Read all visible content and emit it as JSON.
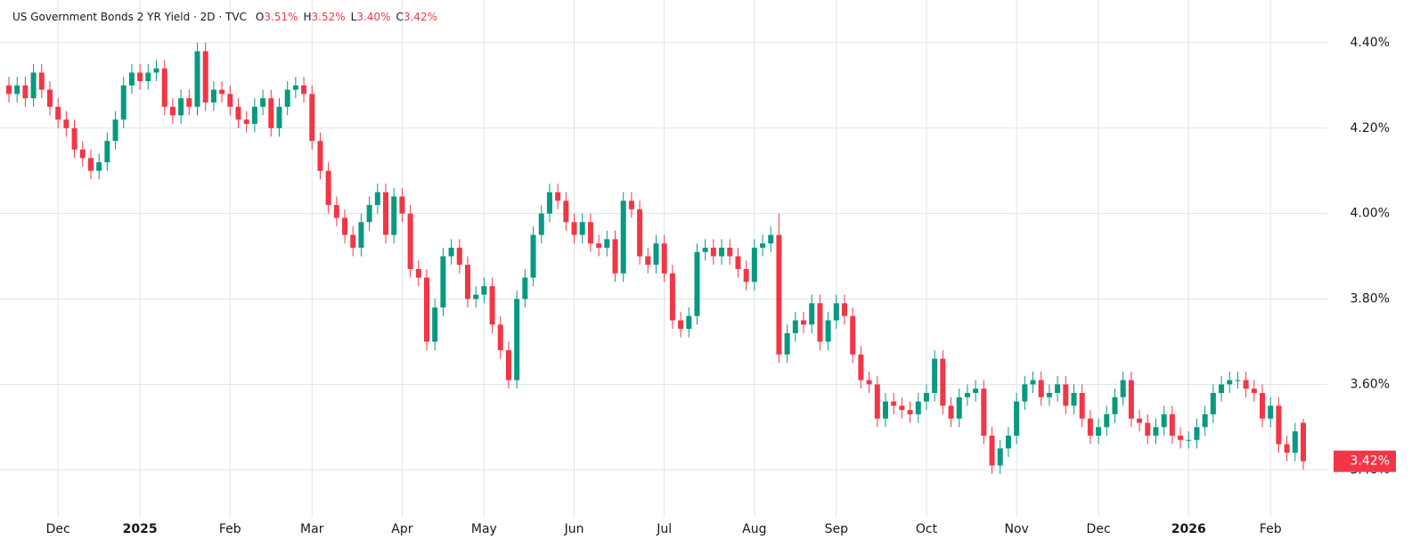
{
  "chart_data": {
    "type": "candlestick",
    "title": "US Government Bonds 2 YR Yield · 2D · TVC",
    "ohlc_legend": [
      {
        "key": "O",
        "label": "3.51%"
      },
      {
        "key": "H",
        "label": "3.52%"
      },
      {
        "key": "L",
        "label": "3.40%"
      },
      {
        "key": "C",
        "label": "3.42%"
      }
    ],
    "last_price": {
      "value": 3.42,
      "label": "3.42%"
    },
    "up_color": "#089981",
    "down_color": "#f23645",
    "grid": true,
    "ylim": [
      3.29,
      4.5
    ],
    "yticks": [
      {
        "value": 3.4,
        "label": "3.40%"
      },
      {
        "value": 3.6,
        "label": "3.60%"
      },
      {
        "value": 3.8,
        "label": "3.80%"
      },
      {
        "value": 4.0,
        "label": "4.00%"
      },
      {
        "value": 4.2,
        "label": "4.20%"
      },
      {
        "value": 4.4,
        "label": "4.40%"
      }
    ],
    "categories": [
      null,
      null,
      null,
      null,
      null,
      null,
      "Dec",
      null,
      null,
      null,
      null,
      null,
      null,
      null,
      null,
      null,
      "2025",
      null,
      null,
      null,
      null,
      null,
      null,
      null,
      null,
      null,
      null,
      "Feb",
      null,
      null,
      null,
      null,
      null,
      null,
      null,
      null,
      null,
      "Mar",
      null,
      null,
      null,
      null,
      null,
      null,
      null,
      null,
      null,
      null,
      "Apr",
      null,
      null,
      null,
      null,
      null,
      null,
      null,
      null,
      null,
      "May",
      null,
      null,
      null,
      null,
      null,
      null,
      null,
      null,
      null,
      null,
      "Jun",
      null,
      null,
      null,
      null,
      null,
      null,
      null,
      null,
      null,
      null,
      "Jul",
      null,
      null,
      null,
      null,
      null,
      null,
      null,
      null,
      null,
      null,
      "Aug",
      null,
      null,
      null,
      null,
      null,
      null,
      null,
      null,
      null,
      "Sep",
      null,
      null,
      null,
      null,
      null,
      null,
      null,
      null,
      null,
      null,
      "Oct",
      null,
      null,
      null,
      null,
      null,
      null,
      null,
      null,
      null,
      null,
      "Nov",
      null,
      null,
      null,
      null,
      null,
      null,
      null,
      null,
      null,
      "Dec",
      null,
      null,
      null,
      null,
      null,
      null,
      null,
      null,
      null,
      null,
      "2026",
      null,
      null,
      null,
      null,
      null,
      null,
      null,
      null,
      null,
      "Feb",
      null,
      null,
      null,
      null
    ],
    "open": [
      4.3,
      4.28,
      4.3,
      4.27,
      4.33,
      4.29,
      4.25,
      4.22,
      4.2,
      4.15,
      4.13,
      4.1,
      4.12,
      4.17,
      4.22,
      4.3,
      4.33,
      4.31,
      4.33,
      4.34,
      4.25,
      4.23,
      4.27,
      4.25,
      4.38,
      4.26,
      4.29,
      4.28,
      4.25,
      4.22,
      4.21,
      4.25,
      4.27,
      4.2,
      4.25,
      4.29,
      4.3,
      4.28,
      4.17,
      4.1,
      4.02,
      3.99,
      3.95,
      3.92,
      3.98,
      4.02,
      4.05,
      3.95,
      4.04,
      4.0,
      3.87,
      3.85,
      3.7,
      3.78,
      3.9,
      3.92,
      3.88,
      3.8,
      3.81,
      3.83,
      3.74,
      3.68,
      3.61,
      3.8,
      3.85,
      3.95,
      4.0,
      4.05,
      4.03,
      3.98,
      3.95,
      3.98,
      3.93,
      3.92,
      3.94,
      3.86,
      4.03,
      4.01,
      3.9,
      3.88,
      3.93,
      3.86,
      3.75,
      3.73,
      3.76,
      3.91,
      3.92,
      3.9,
      3.92,
      3.9,
      3.87,
      3.84,
      3.92,
      3.93,
      3.95,
      3.67,
      3.72,
      3.75,
      3.74,
      3.79,
      3.7,
      3.75,
      3.79,
      3.76,
      3.67,
      3.61,
      3.6,
      3.52,
      3.56,
      3.55,
      3.54,
      3.53,
      3.56,
      3.58,
      3.66,
      3.55,
      3.52,
      3.57,
      3.58,
      3.59,
      3.48,
      3.41,
      3.45,
      3.48,
      3.56,
      3.6,
      3.61,
      3.57,
      3.58,
      3.6,
      3.55,
      3.58,
      3.52,
      3.48,
      3.5,
      3.53,
      3.57,
      3.61,
      3.52,
      3.51,
      3.48,
      3.5,
      3.53,
      3.48,
      3.47,
      3.47,
      3.5,
      3.53,
      3.58,
      3.6,
      3.61,
      3.61,
      3.59,
      3.58,
      3.52,
      3.55,
      3.46,
      3.44,
      3.51
    ],
    "high": [
      4.32,
      4.32,
      4.32,
      4.35,
      4.35,
      4.31,
      4.27,
      4.24,
      4.22,
      4.17,
      4.15,
      4.14,
      4.19,
      4.24,
      4.32,
      4.35,
      4.35,
      4.35,
      4.36,
      4.36,
      4.27,
      4.29,
      4.29,
      4.4,
      4.4,
      4.31,
      4.31,
      4.3,
      4.27,
      4.24,
      4.27,
      4.29,
      4.29,
      4.27,
      4.31,
      4.32,
      4.32,
      4.3,
      4.19,
      4.12,
      4.04,
      4.01,
      3.97,
      4.0,
      4.04,
      4.07,
      4.07,
      4.06,
      4.06,
      4.02,
      3.89,
      3.87,
      3.8,
      3.92,
      3.94,
      3.94,
      3.9,
      3.83,
      3.85,
      3.85,
      3.76,
      3.7,
      3.82,
      3.87,
      3.97,
      4.02,
      4.07,
      4.07,
      4.05,
      4.0,
      4.0,
      4.0,
      3.95,
      3.96,
      3.96,
      4.05,
      4.05,
      4.03,
      3.92,
      3.95,
      3.95,
      3.88,
      3.77,
      3.78,
      3.93,
      3.94,
      3.94,
      3.94,
      3.94,
      3.92,
      3.89,
      3.94,
      3.95,
      3.97,
      4.0,
      3.74,
      3.77,
      3.77,
      3.81,
      3.81,
      3.77,
      3.81,
      3.81,
      3.78,
      3.69,
      3.63,
      3.62,
      3.58,
      3.58,
      3.57,
      3.56,
      3.58,
      3.6,
      3.68,
      3.68,
      3.57,
      3.59,
      3.6,
      3.61,
      3.61,
      3.5,
      3.47,
      3.5,
      3.58,
      3.62,
      3.63,
      3.63,
      3.6,
      3.62,
      3.62,
      3.6,
      3.6,
      3.54,
      3.52,
      3.55,
      3.59,
      3.63,
      3.63,
      3.54,
      3.53,
      3.52,
      3.55,
      3.55,
      3.5,
      3.49,
      3.52,
      3.55,
      3.6,
      3.62,
      3.63,
      3.63,
      3.63,
      3.61,
      3.6,
      3.57,
      3.57,
      3.48,
      3.51,
      3.52
    ],
    "low": [
      4.26,
      4.26,
      4.25,
      4.25,
      4.27,
      4.23,
      4.2,
      4.18,
      4.13,
      4.11,
      4.08,
      4.08,
      4.1,
      4.15,
      4.2,
      4.28,
      4.29,
      4.29,
      4.31,
      4.23,
      4.21,
      4.21,
      4.23,
      4.23,
      4.24,
      4.24,
      4.26,
      4.23,
      4.2,
      4.19,
      4.19,
      4.23,
      4.18,
      4.18,
      4.23,
      4.27,
      4.26,
      4.15,
      4.08,
      4.0,
      3.97,
      3.93,
      3.9,
      3.9,
      3.96,
      4.0,
      3.93,
      3.93,
      3.98,
      3.85,
      3.83,
      3.68,
      3.68,
      3.76,
      3.88,
      3.86,
      3.78,
      3.78,
      3.79,
      3.72,
      3.66,
      3.59,
      3.59,
      3.78,
      3.83,
      3.93,
      3.98,
      4.01,
      3.96,
      3.93,
      3.93,
      3.91,
      3.9,
      3.9,
      3.84,
      3.84,
      3.99,
      3.88,
      3.86,
      3.86,
      3.84,
      3.73,
      3.71,
      3.71,
      3.74,
      3.89,
      3.88,
      3.88,
      3.88,
      3.85,
      3.82,
      3.82,
      3.9,
      3.91,
      3.65,
      3.65,
      3.7,
      3.72,
      3.72,
      3.68,
      3.68,
      3.73,
      3.74,
      3.65,
      3.59,
      3.58,
      3.5,
      3.5,
      3.53,
      3.52,
      3.51,
      3.51,
      3.54,
      3.56,
      3.53,
      3.5,
      3.5,
      3.55,
      3.56,
      3.46,
      3.39,
      3.39,
      3.43,
      3.46,
      3.54,
      3.58,
      3.55,
      3.55,
      3.56,
      3.53,
      3.53,
      3.5,
      3.46,
      3.46,
      3.48,
      3.51,
      3.55,
      3.5,
      3.49,
      3.46,
      3.46,
      3.48,
      3.46,
      3.45,
      3.45,
      3.45,
      3.48,
      3.51,
      3.56,
      3.58,
      3.59,
      3.57,
      3.56,
      3.5,
      3.5,
      3.44,
      3.42,
      3.42,
      3.4
    ],
    "close": [
      4.28,
      4.3,
      4.27,
      4.33,
      4.29,
      4.25,
      4.22,
      4.2,
      4.15,
      4.13,
      4.1,
      4.12,
      4.17,
      4.22,
      4.3,
      4.33,
      4.31,
      4.33,
      4.34,
      4.25,
      4.23,
      4.27,
      4.25,
      4.38,
      4.26,
      4.29,
      4.28,
      4.25,
      4.22,
      4.21,
      4.25,
      4.27,
      4.2,
      4.25,
      4.29,
      4.3,
      4.28,
      4.17,
      4.1,
      4.02,
      3.99,
      3.95,
      3.92,
      3.98,
      4.02,
      4.05,
      3.95,
      4.04,
      4.0,
      3.87,
      3.85,
      3.7,
      3.78,
      3.9,
      3.92,
      3.88,
      3.8,
      3.81,
      3.83,
      3.74,
      3.68,
      3.61,
      3.8,
      3.85,
      3.95,
      4.0,
      4.05,
      4.03,
      3.98,
      3.95,
      3.98,
      3.93,
      3.92,
      3.94,
      3.86,
      4.03,
      4.01,
      3.9,
      3.88,
      3.93,
      3.86,
      3.75,
      3.73,
      3.76,
      3.91,
      3.92,
      3.9,
      3.92,
      3.9,
      3.87,
      3.84,
      3.92,
      3.93,
      3.95,
      3.67,
      3.72,
      3.75,
      3.74,
      3.79,
      3.7,
      3.75,
      3.79,
      3.76,
      3.67,
      3.61,
      3.6,
      3.52,
      3.56,
      3.55,
      3.54,
      3.53,
      3.56,
      3.58,
      3.66,
      3.55,
      3.52,
      3.57,
      3.58,
      3.59,
      3.48,
      3.41,
      3.45,
      3.48,
      3.56,
      3.6,
      3.61,
      3.57,
      3.58,
      3.6,
      3.55,
      3.58,
      3.52,
      3.48,
      3.5,
      3.53,
      3.57,
      3.61,
      3.52,
      3.51,
      3.48,
      3.5,
      3.53,
      3.48,
      3.47,
      3.47,
      3.5,
      3.53,
      3.58,
      3.6,
      3.61,
      3.61,
      3.59,
      3.58,
      3.52,
      3.55,
      3.46,
      3.44,
      3.49,
      3.42
    ]
  }
}
